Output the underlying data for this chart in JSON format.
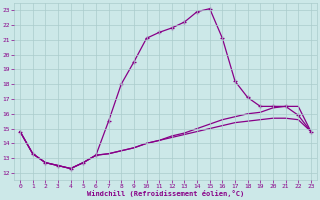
{
  "xlabel": "Windchill (Refroidissement éolien,°C)",
  "ylabel": "",
  "xlim": [
    -0.5,
    23.5
  ],
  "ylim": [
    11.5,
    23.5
  ],
  "yticks": [
    12,
    13,
    14,
    15,
    16,
    17,
    18,
    19,
    20,
    21,
    22,
    23
  ],
  "xticks": [
    0,
    1,
    2,
    3,
    4,
    5,
    6,
    7,
    8,
    9,
    10,
    11,
    12,
    13,
    14,
    15,
    16,
    17,
    18,
    19,
    20,
    21,
    22,
    23
  ],
  "background_color": "#cce8e8",
  "grid_color": "#aacccc",
  "line_color": "#880088",
  "curve1_x": [
    0,
    1,
    2,
    3,
    4,
    5,
    6,
    7,
    8,
    9,
    10,
    11,
    12,
    13,
    14,
    15,
    16,
    17,
    18,
    19,
    20,
    21,
    22,
    23
  ],
  "curve1_y": [
    14.8,
    13.3,
    12.7,
    12.5,
    12.3,
    12.7,
    13.2,
    15.5,
    18.0,
    19.5,
    21.1,
    21.5,
    21.8,
    22.2,
    22.9,
    23.1,
    21.1,
    18.2,
    17.1,
    16.5,
    16.5,
    16.5,
    15.9,
    14.8
  ],
  "curve2_x": [
    0,
    1,
    2,
    3,
    4,
    5,
    6,
    7,
    8,
    9,
    10,
    11,
    12,
    13,
    14,
    15,
    16,
    17,
    18,
    19,
    20,
    21,
    22,
    23
  ],
  "curve2_y": [
    14.8,
    13.3,
    12.7,
    12.5,
    12.3,
    12.7,
    13.2,
    13.3,
    13.5,
    13.7,
    14.0,
    14.2,
    14.5,
    14.7,
    15.0,
    15.3,
    15.6,
    15.8,
    16.0,
    16.1,
    16.4,
    16.5,
    16.5,
    14.8
  ],
  "curve3_x": [
    0,
    1,
    2,
    3,
    4,
    5,
    6,
    7,
    8,
    9,
    10,
    11,
    12,
    13,
    14,
    15,
    16,
    17,
    18,
    19,
    20,
    21,
    22,
    23
  ],
  "curve3_y": [
    14.8,
    13.3,
    12.7,
    12.5,
    12.3,
    12.7,
    13.2,
    13.3,
    13.5,
    13.7,
    14.0,
    14.2,
    14.4,
    14.6,
    14.8,
    15.0,
    15.2,
    15.4,
    15.5,
    15.6,
    15.7,
    15.7,
    15.6,
    14.8
  ]
}
